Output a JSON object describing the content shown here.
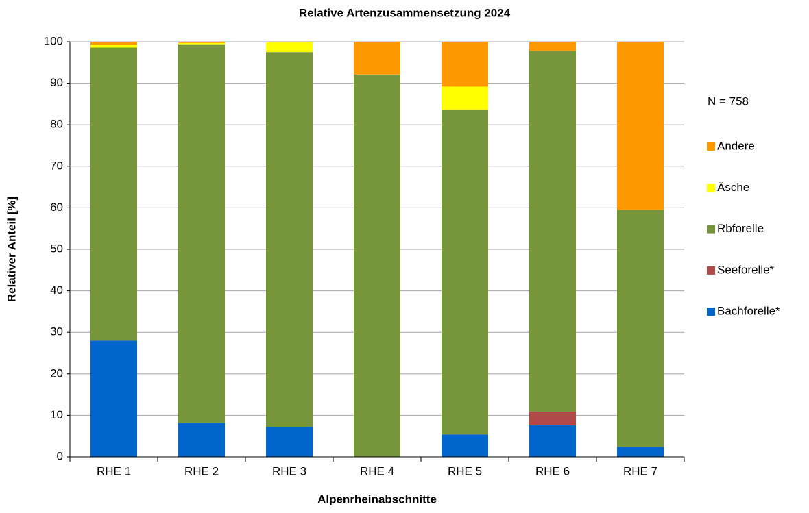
{
  "chart_data": {
    "type": "stacked_bar",
    "title": "Relative Artenzusammensetzung 2024",
    "x_label": "Alpenrheinabschnitte",
    "y_label": "Relativer Anteil [%]",
    "annotation": "N = 758",
    "categories": [
      "RHE 1",
      "RHE 2",
      "RHE 3",
      "RHE 4",
      "RHE 5",
      "RHE 6",
      "RHE 7"
    ],
    "series": [
      {
        "name": "Bachforelle*",
        "color": "#0066cc",
        "values": [
          28,
          8.2,
          7.2,
          0,
          5.4,
          7.6,
          2.4
        ]
      },
      {
        "name": "Seeforelle*",
        "color": "#b04a48",
        "values": [
          0,
          0,
          0,
          0,
          0,
          3.3,
          0
        ]
      },
      {
        "name": "Rbforelle",
        "color": "#77963b",
        "values": [
          70.6,
          91.2,
          90.3,
          92.1,
          78.3,
          86.9,
          57.1
        ]
      },
      {
        "name": "Äsche",
        "color": "#ffff00",
        "values": [
          0.7,
          0.3,
          2.5,
          0,
          5.5,
          0,
          0
        ]
      },
      {
        "name": "Andere",
        "color": "#ff9900",
        "values": [
          0.7,
          0.3,
          0,
          7.9,
          10.8,
          2.2,
          40.5
        ]
      }
    ],
    "ylim": [
      0,
      100
    ],
    "yticks": [
      0,
      10,
      20,
      30,
      40,
      50,
      60,
      70,
      80,
      90,
      100
    ],
    "grid": true,
    "legend": "right"
  }
}
